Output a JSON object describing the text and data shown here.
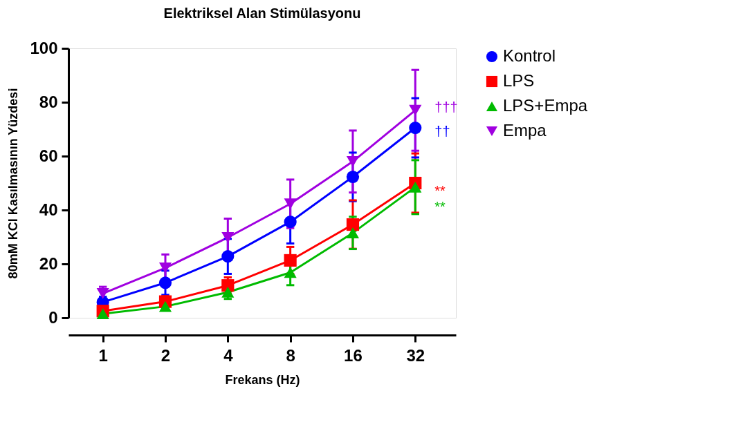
{
  "chart_data": {
    "type": "line",
    "title": "Elektriksel Alan Stimülasyonu",
    "xlabel": "Frekans (Hz)",
    "ylabel": "80mM KCl Kasılmasının Yüzdesi",
    "categories": [
      "1",
      "2",
      "4",
      "8",
      "16",
      "32"
    ],
    "ylim": [
      0,
      100
    ],
    "yticks": [
      0,
      20,
      40,
      60,
      80,
      100
    ],
    "grid": false,
    "legend": "top right",
    "line_style": "solid",
    "series": [
      {
        "name": "Kontrol",
        "color": "#0000ff",
        "marker": "circle",
        "values": [
          5.8,
          13,
          22.8,
          35.6,
          52.3,
          70.5
        ],
        "errors": [
          2,
          4.5,
          6.5,
          8,
          9,
          11
        ]
      },
      {
        "name": "LPS",
        "color": "#ff0000",
        "marker": "square",
        "values": [
          2.5,
          6,
          12,
          21.3,
          34.6,
          50
        ],
        "errors": [
          1,
          2,
          3,
          5,
          9,
          11
        ]
      },
      {
        "name": "LPS+Empa",
        "color": "#00bb00",
        "marker": "triangle",
        "values": [
          1.5,
          4.2,
          9.5,
          16.8,
          31.5,
          48.5
        ],
        "errors": [
          0.5,
          1,
          2.5,
          4.7,
          6,
          10
        ]
      },
      {
        "name": "Empa",
        "color": "#a000e0",
        "marker": "triangle-down",
        "values": [
          9,
          18.5,
          29.8,
          42.3,
          58,
          77
        ],
        "errors": [
          2.5,
          5,
          7,
          9,
          11.5,
          15
        ]
      }
    ],
    "annotations": [
      {
        "text": "†††",
        "x": "32",
        "y": 78
      },
      {
        "text": "††",
        "x": "32",
        "y": 69
      },
      {
        "text": "**",
        "x": "32",
        "y": 47
      },
      {
        "text": "**",
        "x": "32",
        "y": 41
      }
    ]
  }
}
